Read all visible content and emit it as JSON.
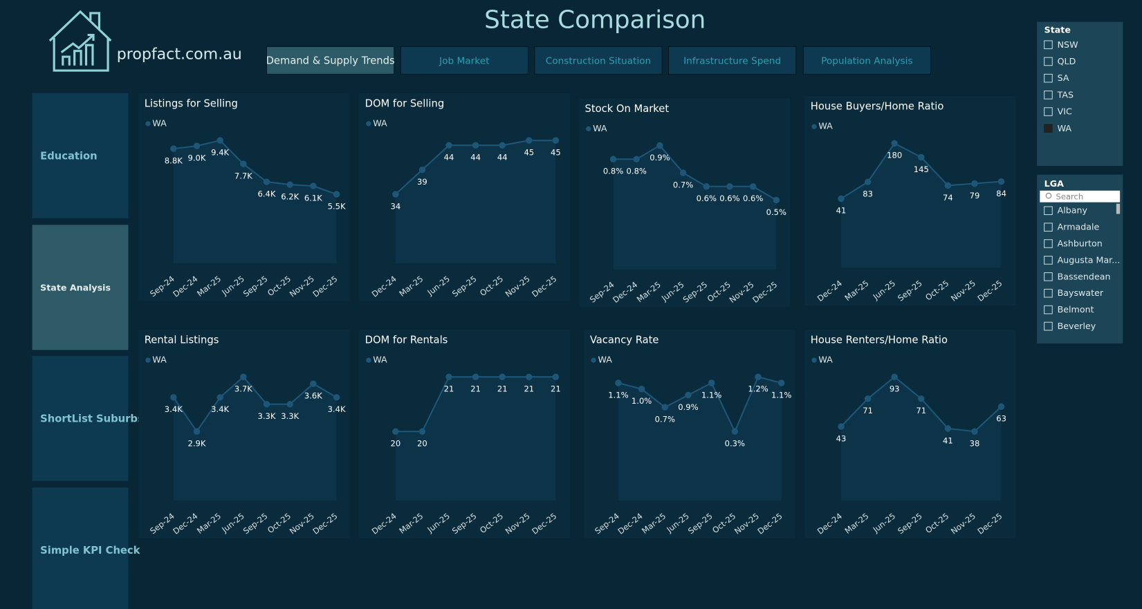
{
  "header": {
    "logo_text": "propfact.com.au",
    "title": "State Comparison"
  },
  "tabs": [
    "Demand & Supply Trends",
    "Job Market",
    "Construction Situation",
    "Infrastructure Spend",
    "Population Analysis"
  ],
  "nav": [
    "Education",
    "State Analysis",
    "ShortList Suburbs",
    "Simple KPI Check"
  ],
  "state_slicer": {
    "title": "State",
    "items": [
      "NSW",
      "QLD",
      "SA",
      "TAS",
      "VIC",
      "WA"
    ],
    "checked": [
      false,
      false,
      false,
      false,
      false,
      true
    ]
  },
  "lga_slicer": {
    "title": "LGA",
    "search_placeholder": "Search",
    "items": [
      "Albany",
      "Armadale",
      "Ashburton",
      "Augusta Mar...",
      "Bassendean",
      "Bayswater",
      "Belmont",
      "Beverley"
    ]
  },
  "chart_data": [
    {
      "type": "area",
      "title": "Listings for Selling",
      "categories": [
        "Sep-24",
        "Dec-24",
        "Mar-25",
        "Jun-25",
        "Sep-25",
        "Oct-25",
        "Nov-25",
        "Dec-25"
      ],
      "series": [
        {
          "name": "WA",
          "color": "#1d5676",
          "values": [
            8800,
            9000,
            9400,
            7700,
            6400,
            6200,
            6100,
            5500
          ],
          "value_labels": [
            "8.8K",
            "9.0K",
            "9.4K",
            "7.7K",
            "6.4K",
            "6.2K",
            "6.1K",
            "5.5K"
          ]
        }
      ]
    },
    {
      "type": "area",
      "title": "DOM for Selling",
      "categories": [
        "Dec-24",
        "Mar-25",
        "Jun-25",
        "Sep-25",
        "Oct-25",
        "Nov-25",
        "Dec-25"
      ],
      "series": [
        {
          "name": "WA",
          "color": "#1d5676",
          "values": [
            34,
            39,
            44,
            44,
            44,
            45,
            45
          ]
        }
      ]
    },
    {
      "type": "area",
      "title": "Stock On Market",
      "categories": [
        "Sep-24",
        "Dec-24",
        "Mar-25",
        "Jun-25",
        "Sep-25",
        "Oct-25",
        "Nov-25",
        "Dec-25"
      ],
      "series": [
        {
          "name": "WA",
          "color": "#1d5676",
          "values": [
            0.8,
            0.8,
            0.9,
            0.7,
            0.6,
            0.6,
            0.6,
            0.5
          ],
          "value_labels": [
            "0.8%",
            "0.8%",
            "0.9%",
            "0.7%",
            "0.6%",
            "0.6%",
            "0.6%",
            "0.5%"
          ]
        }
      ]
    },
    {
      "type": "area",
      "title": "House Buyers/Home Ratio",
      "categories": [
        "Dec-24",
        "Mar-25",
        "Jun-25",
        "Sep-25",
        "Oct-25",
        "Nov-25",
        "Dec-25"
      ],
      "series": [
        {
          "name": "WA",
          "color": "#1d5676",
          "values": [
            41,
            83,
            180,
            145,
            74,
            79,
            84
          ]
        }
      ]
    },
    {
      "type": "area",
      "title": "Rental Listings",
      "categories": [
        "Sep-24",
        "Dec-24",
        "Mar-25",
        "Jun-25",
        "Sep-25",
        "Oct-25",
        "Nov-25",
        "Dec-25"
      ],
      "series": [
        {
          "name": "WA",
          "color": "#1d5676",
          "values": [
            3400,
            2900,
            3400,
            3700,
            3300,
            3300,
            3600,
            3400
          ],
          "value_labels": [
            "3.4K",
            "2.9K",
            "3.4K",
            "3.7K",
            "3.3K",
            "3.3K",
            "3.6K",
            "3.4K"
          ]
        }
      ]
    },
    {
      "type": "area",
      "title": "DOM for Rentals",
      "categories": [
        "Dec-24",
        "Mar-25",
        "Jun-25",
        "Sep-25",
        "Oct-25",
        "Nov-25",
        "Dec-25"
      ],
      "series": [
        {
          "name": "WA",
          "color": "#1d5676",
          "values": [
            20,
            20,
            21,
            21,
            21,
            21,
            21
          ]
        }
      ]
    },
    {
      "type": "area",
      "title": "Vacancy Rate",
      "categories": [
        "Sep-24",
        "Dec-24",
        "Mar-25",
        "Jun-25",
        "Sep-25",
        "Oct-25",
        "Nov-25",
        "Dec-25"
      ],
      "series": [
        {
          "name": "WA",
          "color": "#1d5676",
          "values": [
            1.1,
            1.0,
            0.7,
            0.9,
            1.1,
            0.3,
            1.2,
            1.1
          ],
          "value_labels": [
            "1.1%",
            "1.0%",
            "0.7%",
            "0.9%",
            "1.1%",
            "0.3%",
            "1.2%",
            "1.1%"
          ]
        }
      ]
    },
    {
      "type": "area",
      "title": "House Renters/Home Ratio",
      "categories": [
        "Dec-24",
        "Mar-25",
        "Jun-25",
        "Sep-25",
        "Oct-25",
        "Nov-25",
        "Dec-25"
      ],
      "series": [
        {
          "name": "WA",
          "color": "#1d5676",
          "values": [
            43,
            71,
            93,
            71,
            41,
            38,
            63
          ]
        }
      ]
    }
  ]
}
